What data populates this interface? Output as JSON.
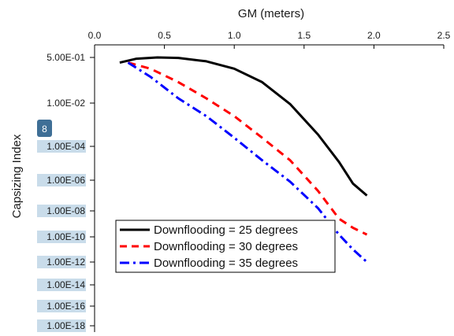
{
  "chart_data": {
    "type": "line",
    "title": "",
    "xlabel": "GM (meters)",
    "ylabel": "Capsizing Index",
    "x_axis_position": "top",
    "xlim": [
      0.0,
      2.5
    ],
    "x_ticks": [
      "0.0",
      "0.5",
      "1.0",
      "1.5",
      "2.0",
      "2.5"
    ],
    "y_scale": "log",
    "y_ticks": [
      {
        "value": 0.5,
        "label": "5.00E-01"
      },
      {
        "value": 0.01,
        "label": "1.00E-02"
      },
      {
        "value": 0.0001,
        "label": "1.00E-04"
      },
      {
        "value": 1e-06,
        "label": "1.00E-06"
      },
      {
        "value": 1e-08,
        "label": "1.00E-08"
      },
      {
        "value": 1e-10,
        "label": "1.00E-10"
      },
      {
        "value": 1e-12,
        "label": "1.00E-12"
      },
      {
        "value": 1e-14,
        "label": "1.00E-14"
      },
      {
        "value": 1e-16,
        "label": "1.00E-16"
      },
      {
        "value": 1e-18,
        "label": "1.00E-18"
      }
    ],
    "grid": false,
    "legend_position": "bottom-center",
    "series": [
      {
        "name": "Downflooding = 25 degrees",
        "color": "#000000",
        "dash": "solid",
        "x": [
          0.18,
          0.3,
          0.45,
          0.6,
          0.8,
          1.0,
          1.2,
          1.4,
          1.6,
          1.75,
          1.85,
          1.95
        ],
        "y": [
          0.32,
          0.45,
          0.5,
          0.48,
          0.36,
          0.19,
          0.06,
          0.009,
          0.00035,
          1.2e-05,
          6e-07,
          1e-07
        ]
      },
      {
        "name": "Downflooding = 30 degrees",
        "color": "#ff0000",
        "dash": "dashed",
        "x": [
          0.24,
          0.4,
          0.6,
          0.8,
          1.0,
          1.2,
          1.4,
          1.6,
          1.75,
          1.85,
          1.95
        ],
        "y": [
          0.32,
          0.19,
          0.06,
          0.015,
          0.0025,
          0.00025,
          1.5e-05,
          2e-07,
          2.5e-09,
          5e-10,
          1.5e-10
        ]
      },
      {
        "name": "Downflooding = 35 degrees",
        "color": "#0000ff",
        "dash": "dashdot",
        "x": [
          0.24,
          0.4,
          0.6,
          0.8,
          1.0,
          1.2,
          1.4,
          1.6,
          1.75,
          1.85,
          1.95
        ],
        "y": [
          0.32,
          0.095,
          0.015,
          0.0025,
          0.00025,
          1.5e-05,
          8e-07,
          1.5e-08,
          1.5e-10,
          1e-11,
          1e-12
        ]
      }
    ]
  },
  "overlay": {
    "badge_label": "8",
    "badge_color": "#3f6f96",
    "label_highlight_color": "#c9dcea"
  }
}
